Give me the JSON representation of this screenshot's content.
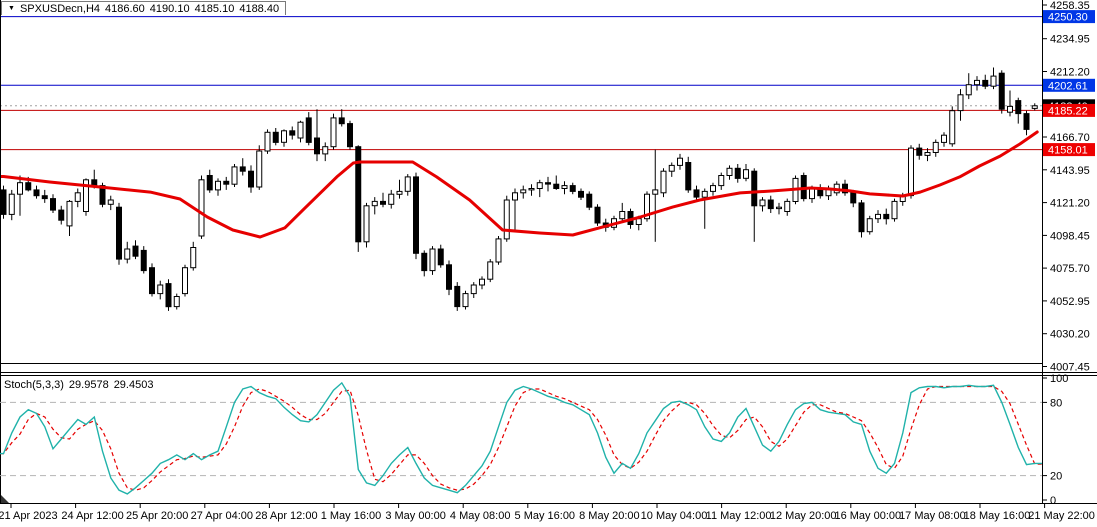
{
  "header": {
    "dropdown_icon": "▼",
    "symbol": "SPXUSDecn,H4",
    "open": "4186.60",
    "high": "4190.10",
    "low": "4185.10",
    "close": "4188.40"
  },
  "indicator_label": {
    "name": "Stoch(5,3,3)",
    "k": "29.9578",
    "d": "29.4503"
  },
  "colors": {
    "background": "#ffffff",
    "bull": "#ffffff",
    "bear": "#000000",
    "outline": "#000000",
    "ma": "#e60000",
    "hline_blue": "#0000c8",
    "hline_red": "#c00000",
    "current_price_line": "#a0a0a0",
    "badge_blue": "#0036e6",
    "badge_red": "#ee0000",
    "badge_black": "#000000",
    "stoch_k": "#20b2aa",
    "stoch_d": "#e60000",
    "grid_dash": "#b4b4b4",
    "axis_text": "#000000",
    "border": "#000000"
  },
  "price_axis": {
    "ticks": [
      "4258.35",
      "4234.95",
      "4212.20",
      "4166.70",
      "4143.95",
      "4121.20",
      "4098.45",
      "4075.70",
      "4052.95",
      "4030.20",
      "4007.45"
    ],
    "badges": [
      {
        "label": "4250.30",
        "value": 4250.3,
        "type": "blue"
      },
      {
        "label": "4202.61",
        "value": 4202.61,
        "type": "blue"
      },
      {
        "label": "4188.40",
        "value": 4188.4,
        "type": "black"
      },
      {
        "label": "4185.22",
        "value": 4185.22,
        "type": "red"
      },
      {
        "label": "4158.01",
        "value": 4158.01,
        "type": "red"
      }
    ]
  },
  "stoch_axis": {
    "ticks": [
      {
        "label": "100",
        "value": 100
      },
      {
        "label": "80",
        "value": 80
      },
      {
        "label": "20",
        "value": 20
      },
      {
        "label": "0",
        "value": 0
      }
    ],
    "levels": [
      80,
      20
    ]
  },
  "time_axis": {
    "labels": [
      "21 Apr 2023",
      "24 Apr 12:00",
      "25 Apr 20:00",
      "27 Apr 04:00",
      "28 Apr 12:00",
      "1 May 16:00",
      "3 May 00:00",
      "4 May 08:00",
      "5 May 16:00",
      "8 May 20:00",
      "10 May 04:00",
      "11 May 12:00",
      "12 May 20:00",
      "16 May 00:00",
      "17 May 08:00",
      "18 May 16:00",
      "21 May 22:00"
    ]
  },
  "chart_data": {
    "type": "candlestick",
    "title": "SPXUSDecn,H4",
    "timeframe": "H4",
    "ylim": [
      4007.45,
      4258.35
    ],
    "current_price": 4188.4,
    "hlines": [
      {
        "price": 4250.3,
        "color": "blue",
        "style": "solid"
      },
      {
        "price": 4202.61,
        "color": "blue",
        "style": "solid"
      },
      {
        "price": 4185.22,
        "color": "red",
        "style": "solid"
      },
      {
        "price": 4158.01,
        "color": "red",
        "style": "solid"
      },
      {
        "price": 4188.4,
        "color": "gray",
        "style": "dotted"
      }
    ],
    "candles": [
      [
        4130,
        4133,
        4110,
        4113
      ],
      [
        4113,
        4130,
        4109,
        4127
      ],
      [
        4127,
        4140,
        4112,
        4135
      ],
      [
        4135,
        4139,
        4129,
        4130
      ],
      [
        4130,
        4133,
        4124,
        4126
      ],
      [
        4126,
        4130,
        4121,
        4124
      ],
      [
        4124,
        4127,
        4114,
        4116
      ],
      [
        4116,
        4119,
        4106,
        4109
      ],
      [
        4105,
        4123,
        4098,
        4122
      ],
      [
        4122,
        4131,
        4118,
        4128
      ],
      [
        4115,
        4138,
        4112,
        4137
      ],
      [
        4137,
        4144,
        4131,
        4133
      ],
      [
        4133,
        4135,
        4118,
        4120
      ],
      [
        4120,
        4126,
        4116,
        4123
      ],
      [
        4118,
        4121,
        4078,
        4082
      ],
      [
        4082,
        4094,
        4079,
        4089
      ],
      [
        4091,
        4095,
        4082,
        4084
      ],
      [
        4088,
        4091,
        4072,
        4074
      ],
      [
        4076,
        4079,
        4056,
        4058
      ],
      [
        4058,
        4067,
        4054,
        4064
      ],
      [
        4065,
        4068,
        4046,
        4049
      ],
      [
        4049,
        4058,
        4047,
        4056
      ],
      [
        4058,
        4078,
        4056,
        4076
      ],
      [
        4076,
        4094,
        4074,
        4090
      ],
      [
        4098,
        4140,
        4096,
        4137
      ],
      [
        4140,
        4144,
        4128,
        4130
      ],
      [
        4130,
        4138,
        4126,
        4136
      ],
      [
        4136,
        4139,
        4130,
        4134
      ],
      [
        4134,
        4148,
        4132,
        4146
      ],
      [
        4146,
        4152,
        4140,
        4143
      ],
      [
        4143,
        4147,
        4128,
        4132
      ],
      [
        4132,
        4161,
        4130,
        4157
      ],
      [
        4157,
        4172,
        4155,
        4170
      ],
      [
        4170,
        4173,
        4161,
        4163
      ],
      [
        4163,
        4172,
        4160,
        4171
      ],
      [
        4171,
        4174,
        4165,
        4168
      ],
      [
        4166,
        4178,
        4163,
        4177
      ],
      [
        4180,
        4184,
        4161,
        4163
      ],
      [
        4166,
        4186,
        4150,
        4155
      ],
      [
        4155,
        4163,
        4150,
        4160
      ],
      [
        4160,
        4183,
        4158,
        4180
      ],
      [
        4180,
        4186,
        4174,
        4176
      ],
      [
        4176,
        4178,
        4158,
        4160
      ],
      [
        4160,
        4161,
        4087,
        4094
      ],
      [
        4094,
        4121,
        4090,
        4119
      ],
      [
        4119,
        4125,
        4113,
        4122
      ],
      [
        4122,
        4128,
        4118,
        4120
      ],
      [
        4120,
        4130,
        4117,
        4127
      ],
      [
        4127,
        4137,
        4124,
        4129
      ],
      [
        4129,
        4141,
        4126,
        4139
      ],
      [
        4139,
        4142,
        4082,
        4086
      ],
      [
        4086,
        4088,
        4070,
        4074
      ],
      [
        4074,
        4091,
        4071,
        4089
      ],
      [
        4089,
        4092,
        4076,
        4078
      ],
      [
        4078,
        4081,
        4057,
        4061
      ],
      [
        4063,
        4066,
        4046,
        4049
      ],
      [
        4049,
        4060,
        4047,
        4058
      ],
      [
        4058,
        4066,
        4055,
        4064
      ],
      [
        4064,
        4070,
        4061,
        4068
      ],
      [
        4068,
        4082,
        4066,
        4080
      ],
      [
        4080,
        4098,
        4078,
        4096
      ],
      [
        4096,
        4126,
        4094,
        4123
      ],
      [
        4123,
        4131,
        4101,
        4128
      ],
      [
        4128,
        4133,
        4124,
        4130
      ],
      [
        4130,
        4134,
        4126,
        4131
      ],
      [
        4131,
        4137,
        4125,
        4135
      ],
      [
        4135,
        4139,
        4129,
        4134
      ],
      [
        4134,
        4140,
        4130,
        4131
      ],
      [
        4131,
        4136,
        4127,
        4133
      ],
      [
        4133,
        4135,
        4127,
        4129
      ],
      [
        4129,
        4131,
        4123,
        4125
      ],
      [
        4127,
        4129,
        4116,
        4118
      ],
      [
        4118,
        4120,
        4105,
        4107
      ],
      [
        4107,
        4110,
        4101,
        4104
      ],
      [
        4104,
        4112,
        4102,
        4110
      ],
      [
        4110,
        4121,
        4108,
        4115
      ],
      [
        4115,
        4117,
        4103,
        4106
      ],
      [
        4106,
        4112,
        4102,
        4110
      ],
      [
        4110,
        4129,
        4108,
        4127
      ],
      [
        4127,
        4158,
        4094,
        4130
      ],
      [
        4128,
        4145,
        4125,
        4143
      ],
      [
        4143,
        4149,
        4139,
        4147
      ],
      [
        4147,
        4155,
        4144,
        4152
      ],
      [
        4149,
        4153,
        4128,
        4130
      ],
      [
        4130,
        4133,
        4122,
        4125
      ],
      [
        4125,
        4131,
        4103,
        4129
      ],
      [
        4129,
        4135,
        4126,
        4133
      ],
      [
        4133,
        4142,
        4130,
        4140
      ],
      [
        4140,
        4147,
        4137,
        4145
      ],
      [
        4145,
        4148,
        4135,
        4138
      ],
      [
        4138,
        4148,
        4136,
        4144
      ],
      [
        4143,
        4145,
        4094,
        4119
      ],
      [
        4119,
        4125,
        4115,
        4123
      ],
      [
        4123,
        4126,
        4114,
        4117
      ],
      [
        4117,
        4121,
        4113,
        4118
      ],
      [
        4115,
        4124,
        4112,
        4122
      ],
      [
        4122,
        4140,
        4120,
        4138
      ],
      [
        4140,
        4142,
        4122,
        4124
      ],
      [
        4124,
        4133,
        4121,
        4131
      ],
      [
        4131,
        4134,
        4124,
        4126
      ],
      [
        4126,
        4133,
        4123,
        4131
      ],
      [
        4128,
        4136,
        4126,
        4134
      ],
      [
        4134,
        4137,
        4126,
        4128
      ],
      [
        4128,
        4130,
        4118,
        4121
      ],
      [
        4121,
        4123,
        4097,
        4101
      ],
      [
        4101,
        4112,
        4099,
        4110
      ],
      [
        4110,
        4116,
        4107,
        4113
      ],
      [
        4113,
        4117,
        4106,
        4110
      ],
      [
        4110,
        4124,
        4108,
        4122
      ],
      [
        4122,
        4128,
        4119,
        4126
      ],
      [
        4126,
        4161,
        4124,
        4159
      ],
      [
        4159,
        4162,
        4151,
        4154
      ],
      [
        4154,
        4159,
        4150,
        4156
      ],
      [
        4156,
        4165,
        4153,
        4163
      ],
      [
        4163,
        4170,
        4160,
        4168
      ],
      [
        4162,
        4188,
        4160,
        4185
      ],
      [
        4185,
        4200,
        4178,
        4196
      ],
      [
        4196,
        4211,
        4193,
        4203
      ],
      [
        4203,
        4209,
        4199,
        4206
      ],
      [
        4206,
        4210,
        4200,
        4202
      ],
      [
        4202,
        4215,
        4200,
        4209
      ],
      [
        4211,
        4213,
        4183,
        4186
      ],
      [
        4184,
        4199,
        4181,
        4188
      ],
      [
        4192,
        4194,
        4176,
        4183
      ],
      [
        4183,
        4185,
        4168,
        4172
      ],
      [
        4186.6,
        4190.1,
        4185.1,
        4188.4
      ]
    ],
    "ma": [
      [
        0,
        4139.3
      ],
      [
        5.6,
        4135.5
      ],
      [
        11.7,
        4132
      ],
      [
        17.8,
        4128.5
      ],
      [
        21.4,
        4123.7
      ],
      [
        24.7,
        4111.2
      ],
      [
        27.8,
        4102.2
      ],
      [
        31.1,
        4097.3
      ],
      [
        34.1,
        4103.6
      ],
      [
        36.3,
        4116.1
      ],
      [
        40.4,
        4139
      ],
      [
        42.4,
        4148.7
      ],
      [
        43.2,
        4149.4
      ],
      [
        49.6,
        4149.4
      ],
      [
        52.5,
        4139
      ],
      [
        56.5,
        4123
      ],
      [
        60.5,
        4102.2
      ],
      [
        65,
        4100.1
      ],
      [
        69,
        4098.7
      ],
      [
        73.5,
        4105.6
      ],
      [
        77.2,
        4111.2
      ],
      [
        81.1,
        4118.1
      ],
      [
        84.4,
        4123
      ],
      [
        89.3,
        4127.9
      ],
      [
        93.3,
        4129.3
      ],
      [
        97.8,
        4131.3
      ],
      [
        100.2,
        4130.6
      ],
      [
        102.6,
        4129.3
      ],
      [
        105,
        4127.2
      ],
      [
        109,
        4125.8
      ],
      [
        111.1,
        4128.5
      ],
      [
        113.5,
        4133.4
      ],
      [
        115.9,
        4139
      ],
      [
        118.3,
        4146.6
      ],
      [
        120.8,
        4153.5
      ],
      [
        123.2,
        4161.9
      ],
      [
        125.3,
        4170.2
      ]
    ],
    "stoch": {
      "overbought": 80,
      "oversold": 20,
      "range": [
        0,
        100
      ],
      "k": [
        38,
        55,
        68,
        74,
        71,
        60,
        42,
        50,
        58,
        66,
        62,
        68,
        40,
        18,
        8,
        5,
        10,
        16,
        22,
        30,
        33,
        37,
        33,
        38,
        33,
        37,
        40,
        60,
        80,
        91,
        93,
        88,
        85,
        83,
        76,
        70,
        65,
        64,
        70,
        80,
        90,
        96,
        85,
        25,
        14,
        12,
        20,
        30,
        37,
        43,
        30,
        18,
        12,
        10,
        8,
        6,
        12,
        20,
        28,
        40,
        60,
        80,
        90,
        93,
        91,
        88,
        85,
        83,
        80,
        78,
        74,
        70,
        55,
        35,
        22,
        30,
        26,
        38,
        55,
        65,
        75,
        80,
        81,
        78,
        74,
        60,
        50,
        48,
        55,
        68,
        75,
        60,
        45,
        40,
        48,
        62,
        74,
        79,
        80,
        74,
        72,
        71,
        70,
        64,
        62,
        40,
        26,
        22,
        30,
        55,
        88,
        92,
        93,
        93,
        92,
        93,
        93,
        94,
        93,
        93,
        94,
        80,
        62,
        43,
        29,
        29.96
      ],
      "d": [
        38,
        47,
        54,
        66,
        71,
        68,
        58,
        51,
        50,
        58,
        62,
        65,
        57,
        42,
        22,
        10,
        8,
        10,
        16,
        23,
        28,
        33,
        34,
        36,
        35,
        36,
        37,
        46,
        60,
        77,
        88,
        91,
        89,
        85,
        81,
        76,
        70,
        66,
        66,
        71,
        80,
        89,
        90,
        69,
        41,
        17,
        15,
        21,
        29,
        37,
        37,
        30,
        20,
        13,
        10,
        8,
        9,
        13,
        20,
        29,
        43,
        60,
        77,
        88,
        91,
        91,
        88,
        85,
        83,
        80,
        77,
        74,
        66,
        53,
        37,
        29,
        26,
        31,
        40,
        53,
        65,
        73,
        79,
        80,
        78,
        71,
        61,
        53,
        51,
        57,
        66,
        68,
        60,
        48,
        44,
        50,
        61,
        72,
        78,
        78,
        75,
        72,
        71,
        68,
        65,
        55,
        43,
        29,
        26,
        36,
        58,
        78,
        91,
        93,
        93,
        93,
        93,
        93,
        93,
        93,
        93,
        89,
        79,
        62,
        45,
        29.45
      ]
    }
  }
}
